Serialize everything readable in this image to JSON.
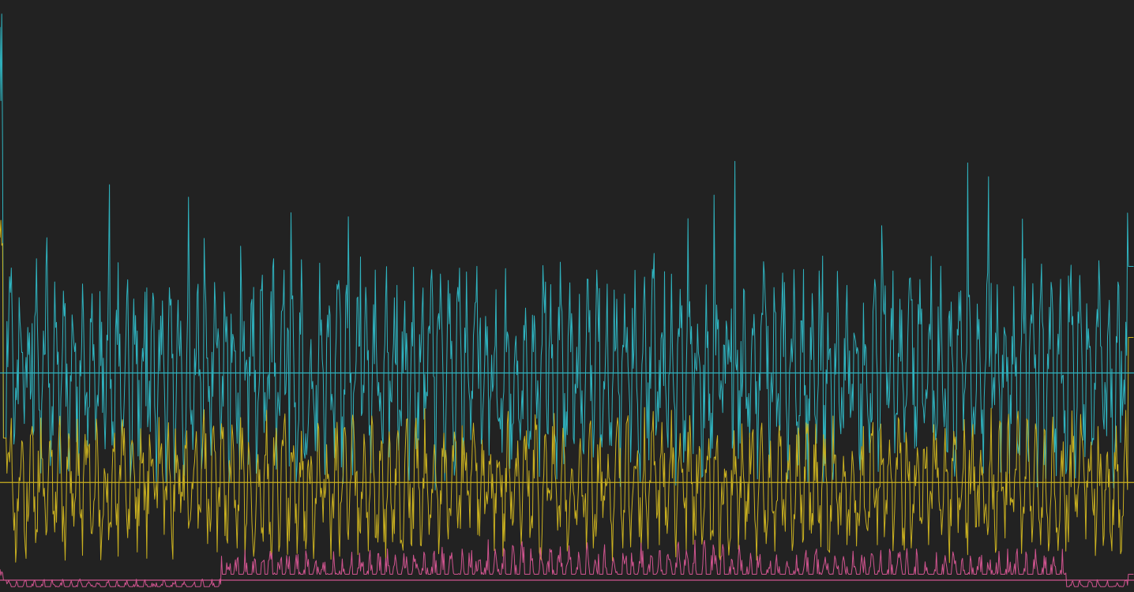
{
  "chart_data": {
    "type": "line",
    "title": "",
    "xlabel": "",
    "ylabel": "",
    "xlim": [
      0,
      1436
    ],
    "ylim": [
      0,
      100
    ],
    "grid": false,
    "legend": "none",
    "background": "#222222",
    "series": [
      {
        "color": "#2fb3bf",
        "baseline_value": 37,
        "amplitude": 18,
        "spike_value": 99,
        "start_value": 26,
        "end_value": 55,
        "mean_value": 37
      },
      {
        "color": "#c9b020",
        "baseline_value": 18,
        "amplitude": 12,
        "spike_value": 66,
        "start_value": 26,
        "end_value": 43,
        "mean_value": 18.5
      },
      {
        "color": "#d0548f",
        "baseline_value": 3,
        "amplitude": 4,
        "spike_value": 4,
        "start_value": 2,
        "end_value": 3,
        "mean_value": 2
      }
    ]
  }
}
